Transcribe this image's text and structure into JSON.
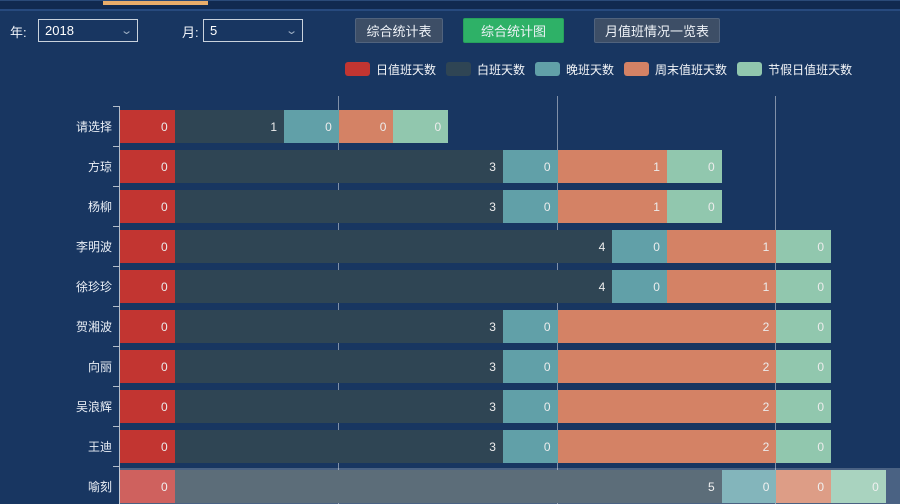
{
  "header": {
    "year_label": "年:",
    "year_value": "2018",
    "month_label": "月:",
    "month_value": "5",
    "buttons": [
      {
        "label": "综合统计表",
        "active": false
      },
      {
        "label": "综合统计图",
        "active": true
      },
      {
        "label": "月值班情况一览表",
        "active": false
      }
    ],
    "active_button_color": "#2eb167",
    "inactive_button_color": "#3d4e66"
  },
  "legend": [
    {
      "label": "日值班天数",
      "color": "#c23531"
    },
    {
      "label": "白班天数",
      "color": "#2f4554"
    },
    {
      "label": "晚班天数",
      "color": "#61a0a8"
    },
    {
      "label": "周末值班天数",
      "color": "#d48265"
    },
    {
      "label": "节假日值班天数",
      "color": "#91c7ae"
    }
  ],
  "chart_data": {
    "type": "bar",
    "orientation": "horizontal",
    "stacked": true,
    "grid": true,
    "legend_position": "top",
    "categories": [
      "请选择",
      "方琼",
      "杨柳",
      "李明波",
      "徐珍珍",
      "贺湘波",
      "向丽",
      "吴浪辉",
      "王迪",
      "喻刻"
    ],
    "series": [
      {
        "name": "日值班天数",
        "color": "#c23531",
        "values": [
          0,
          0,
          0,
          0,
          0,
          0,
          0,
          0,
          0,
          0
        ]
      },
      {
        "name": "白班天数",
        "color": "#2f4554",
        "values": [
          1,
          3,
          3,
          4,
          4,
          3,
          3,
          3,
          3,
          5
        ]
      },
      {
        "name": "晚班天数",
        "color": "#61a0a8",
        "values": [
          0,
          0,
          0,
          0,
          0,
          0,
          0,
          0,
          0,
          0
        ]
      },
      {
        "name": "周末值班天数",
        "color": "#d48265",
        "values": [
          0,
          1,
          1,
          1,
          1,
          2,
          2,
          2,
          2,
          0
        ]
      },
      {
        "name": "节假日值班天数",
        "color": "#91c7ae",
        "values": [
          0,
          0,
          0,
          0,
          0,
          0,
          0,
          0,
          0,
          0
        ]
      }
    ],
    "highlighted_category": "喻刻"
  }
}
